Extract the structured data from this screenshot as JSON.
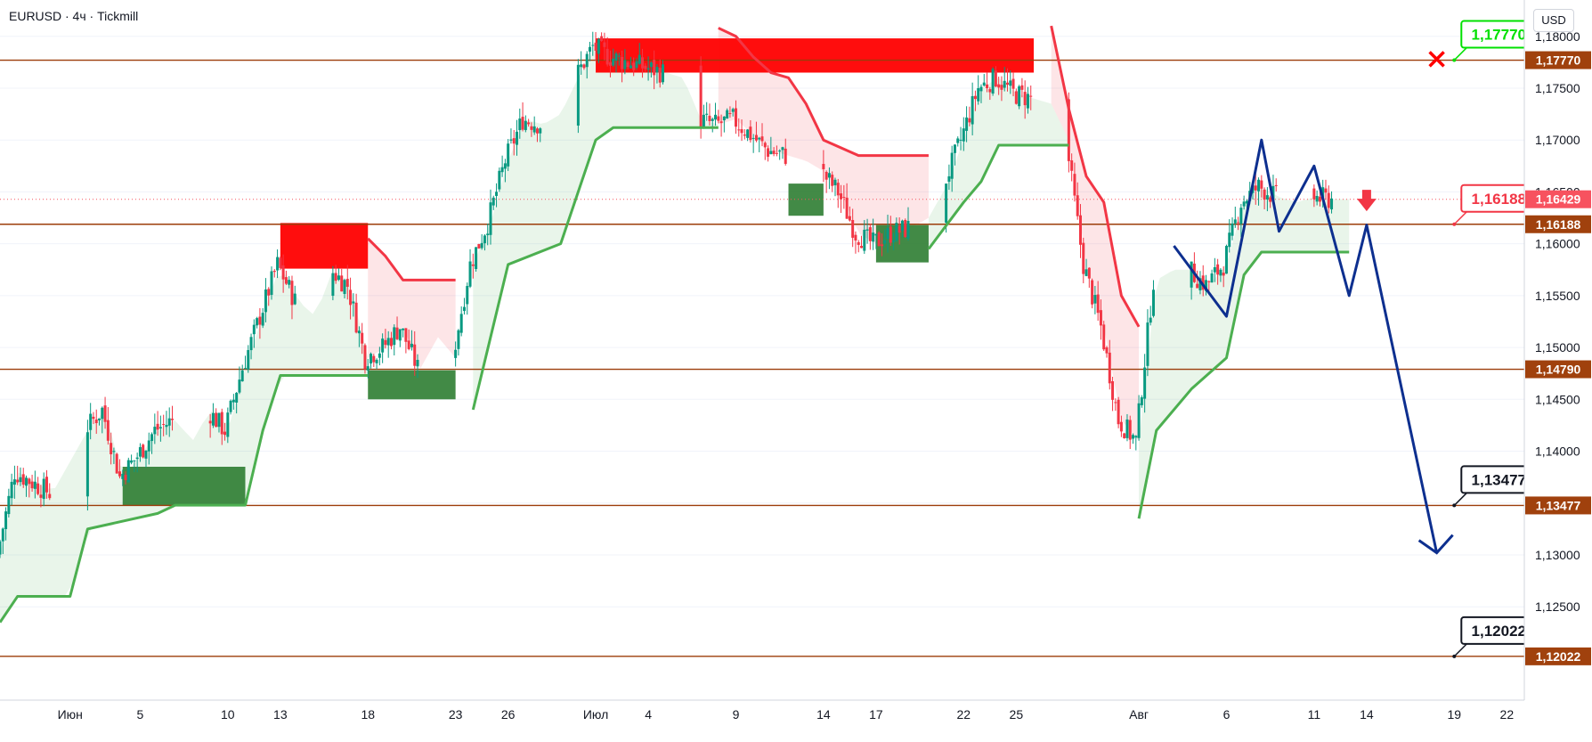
{
  "header": {
    "symbol": "EURUSD · 4ч · Tickmill",
    "currency": "USD"
  },
  "colors": {
    "bull": "#089981",
    "bear": "#f23645",
    "level": "#9c3d0a",
    "level_tag": "#a0410d",
    "supertrend_up": "#4caf50",
    "supertrend_down": "#f23645",
    "fill_up": "rgba(76,175,80,0.12)",
    "fill_down": "rgba(242,54,69,0.13)",
    "supply_zone": "#ff0000",
    "demand_zone": "#2e7d32",
    "projection": "#0d2f8f",
    "callout_green": "#00e000",
    "callout_red": "#f23645",
    "callout_black": "#131722"
  },
  "chart_data": {
    "type": "candlestick",
    "title": "EURUSD · 4ч · Tickmill",
    "y_axis": {
      "min": 1.116,
      "max": 1.1835,
      "ticks": [
        1.125,
        1.13,
        1.135,
        1.14,
        1.145,
        1.15,
        1.155,
        1.16,
        1.165,
        1.17,
        1.175,
        1.18
      ],
      "currency": "USD"
    },
    "x_axis": {
      "start_date": "2025-05-28",
      "end_date": "2025-08-23",
      "tick_labels": [
        {
          "date": "2025-06-01",
          "label": "Июн"
        },
        {
          "date": "2025-06-05",
          "label": "5"
        },
        {
          "date": "2025-06-10",
          "label": "10"
        },
        {
          "date": "2025-06-13",
          "label": "13"
        },
        {
          "date": "2025-06-18",
          "label": "18"
        },
        {
          "date": "2025-06-23",
          "label": "23"
        },
        {
          "date": "2025-06-26",
          "label": "26"
        },
        {
          "date": "2025-07-01",
          "label": "Июл"
        },
        {
          "date": "2025-07-04",
          "label": "4"
        },
        {
          "date": "2025-07-09",
          "label": "9"
        },
        {
          "date": "2025-07-14",
          "label": "14"
        },
        {
          "date": "2025-07-17",
          "label": "17"
        },
        {
          "date": "2025-07-22",
          "label": "22"
        },
        {
          "date": "2025-07-25",
          "label": "25"
        },
        {
          "date": "2025-08-01",
          "label": "Авг"
        },
        {
          "date": "2025-08-06",
          "label": "6"
        },
        {
          "date": "2025-08-11",
          "label": "11"
        },
        {
          "date": "2025-08-14",
          "label": "14"
        },
        {
          "date": "2025-08-19",
          "label": "19"
        },
        {
          "date": "2025-08-22",
          "label": "22"
        }
      ]
    },
    "price_path": [
      [
        "2025-05-28",
        1.13
      ],
      [
        "2025-05-29",
        1.138
      ],
      [
        "2025-05-31",
        1.136
      ],
      [
        "2025-06-02",
        1.142
      ],
      [
        "2025-06-03",
        1.144
      ],
      [
        "2025-06-04",
        1.1375
      ],
      [
        "2025-06-05",
        1.1395
      ],
      [
        "2025-06-06",
        1.142
      ],
      [
        "2025-06-07",
        1.143
      ],
      [
        "2025-06-08",
        1.141
      ],
      [
        "2025-06-09",
        1.144
      ],
      [
        "2025-06-10",
        1.142
      ],
      [
        "2025-06-11",
        1.148
      ],
      [
        "2025-06-12",
        1.153
      ],
      [
        "2025-06-13",
        1.158
      ],
      [
        "2025-06-14",
        1.1545
      ],
      [
        "2025-06-15",
        1.153
      ],
      [
        "2025-06-16",
        1.1575
      ],
      [
        "2025-06-17",
        1.156
      ],
      [
        "2025-06-18",
        1.149
      ],
      [
        "2025-06-19",
        1.15
      ],
      [
        "2025-06-20",
        1.152
      ],
      [
        "2025-06-21",
        1.148
      ],
      [
        "2025-06-22",
        1.151
      ],
      [
        "2025-06-23",
        1.149
      ],
      [
        "2025-06-24",
        1.158
      ],
      [
        "2025-06-25",
        1.162
      ],
      [
        "2025-06-26",
        1.168
      ],
      [
        "2025-06-27",
        1.172
      ],
      [
        "2025-06-28",
        1.1715
      ],
      [
        "2025-06-29",
        1.1725
      ],
      [
        "2025-06-30",
        1.176
      ],
      [
        "2025-07-01",
        1.179
      ],
      [
        "2025-07-02",
        1.178
      ],
      [
        "2025-07-03",
        1.1775
      ],
      [
        "2025-07-04",
        1.177
      ],
      [
        "2025-07-05",
        1.1765
      ],
      [
        "2025-07-06",
        1.176
      ],
      [
        "2025-07-07",
        1.172
      ],
      [
        "2025-07-08",
        1.1715
      ],
      [
        "2025-07-09",
        1.172
      ],
      [
        "2025-07-10",
        1.1705
      ],
      [
        "2025-07-11",
        1.169
      ],
      [
        "2025-07-12",
        1.1685
      ],
      [
        "2025-07-13",
        1.168
      ],
      [
        "2025-07-14",
        1.167
      ],
      [
        "2025-07-15",
        1.165
      ],
      [
        "2025-07-16",
        1.161
      ],
      [
        "2025-07-17",
        1.16
      ],
      [
        "2025-07-18",
        1.161
      ],
      [
        "2025-07-19",
        1.1615
      ],
      [
        "2025-07-20",
        1.1625
      ],
      [
        "2025-07-21",
        1.1655
      ],
      [
        "2025-07-22",
        1.17
      ],
      [
        "2025-07-23",
        1.175
      ],
      [
        "2025-07-24",
        1.176
      ],
      [
        "2025-07-25",
        1.1745
      ],
      [
        "2025-07-26",
        1.174
      ],
      [
        "2025-07-27",
        1.1735
      ],
      [
        "2025-07-28",
        1.17
      ],
      [
        "2025-07-29",
        1.158
      ],
      [
        "2025-07-30",
        1.152
      ],
      [
        "2025-07-31",
        1.143
      ],
      [
        "2025-08-01",
        1.141
      ],
      [
        "2025-08-02",
        1.1565
      ],
      [
        "2025-08-03",
        1.1575
      ],
      [
        "2025-08-04",
        1.1575
      ],
      [
        "2025-08-05",
        1.156
      ],
      [
        "2025-08-06",
        1.158
      ],
      [
        "2025-08-07",
        1.164
      ],
      [
        "2025-08-08",
        1.1655
      ],
      [
        "2025-08-09",
        1.1645
      ],
      [
        "2025-08-10",
        1.164
      ],
      [
        "2025-08-11",
        1.1645
      ],
      [
        "2025-08-12",
        1.1643
      ]
    ],
    "horizontal_levels": [
      1.1777,
      1.16188,
      1.1479,
      1.13477,
      1.12022
    ],
    "price_tags": [
      {
        "value": 1.1777,
        "label": "1,17770"
      },
      {
        "value": 1.16429,
        "label": "1,16429",
        "current": true
      },
      {
        "value": 1.16188,
        "label": "1,16188"
      },
      {
        "value": 1.1479,
        "label": "1,14790"
      },
      {
        "value": 1.13477,
        "label": "1,13477"
      },
      {
        "value": 1.12022,
        "label": "1,12022"
      }
    ],
    "y_tick_labels": [
      "1,12500",
      "1,13000",
      "1,13500",
      "1,14000",
      "1,14500",
      "1,15000",
      "1,15500",
      "1,16000",
      "1,16500",
      "1,17000",
      "1,17500",
      "1,18000"
    ],
    "zones": [
      {
        "kind": "supply",
        "x0": "2025-06-13",
        "x1": "2025-06-18",
        "y0": 1.1576,
        "y1": 1.162
      },
      {
        "kind": "supply",
        "x0": "2025-07-01",
        "x1": "2025-07-26",
        "y0": 1.1765,
        "y1": 1.1798
      },
      {
        "kind": "demand",
        "x0": "2025-06-04",
        "x1": "2025-06-11",
        "y0": 1.1348,
        "y1": 1.1385
      },
      {
        "kind": "demand",
        "x0": "2025-06-18",
        "x1": "2025-06-23",
        "y0": 1.145,
        "y1": 1.1478
      },
      {
        "kind": "demand",
        "x0": "2025-07-12",
        "x1": "2025-07-14",
        "y0": 1.1627,
        "y1": 1.1658
      },
      {
        "kind": "demand",
        "x0": "2025-07-17",
        "x1": "2025-07-20",
        "y0": 1.1582,
        "y1": 1.1618
      }
    ],
    "supertrend_up_segments": [
      [
        [
          "2025-05-28",
          1.1235
        ],
        [
          "2025-05-29",
          1.126
        ],
        [
          "2025-06-01",
          1.126
        ],
        [
          "2025-06-02",
          1.1325
        ],
        [
          "2025-06-06",
          1.134
        ],
        [
          "2025-06-07",
          1.1348
        ],
        [
          "2025-06-11",
          1.1348
        ],
        [
          "2025-06-12",
          1.142
        ],
        [
          "2025-06-13",
          1.1473
        ],
        [
          "2025-06-18",
          1.1473
        ]
      ],
      [
        [
          "2025-06-24",
          1.144
        ],
        [
          "2025-06-26",
          1.158
        ],
        [
          "2025-06-29",
          1.16
        ],
        [
          "2025-07-01",
          1.17
        ],
        [
          "2025-07-02",
          1.1712
        ],
        [
          "2025-07-08",
          1.1712
        ]
      ],
      [
        [
          "2025-07-20",
          1.1595
        ],
        [
          "2025-07-22",
          1.164
        ],
        [
          "2025-07-23",
          1.166
        ],
        [
          "2025-07-24",
          1.1695
        ],
        [
          "2025-07-28",
          1.1695
        ]
      ],
      [
        [
          "2025-08-01",
          1.1335
        ],
        [
          "2025-08-02",
          1.142
        ],
        [
          "2025-08-04",
          1.146
        ],
        [
          "2025-08-06",
          1.149
        ],
        [
          "2025-08-07",
          1.157
        ],
        [
          "2025-08-08",
          1.1592
        ],
        [
          "2025-08-13",
          1.1592
        ]
      ]
    ],
    "supertrend_down_segments": [
      [
        [
          "2025-06-18",
          1.1605
        ],
        [
          "2025-06-19",
          1.1588
        ],
        [
          "2025-06-20",
          1.1565
        ],
        [
          "2025-06-23",
          1.1565
        ]
      ],
      [
        [
          "2025-07-08",
          1.1808
        ],
        [
          "2025-07-09",
          1.18
        ],
        [
          "2025-07-10",
          1.178
        ],
        [
          "2025-07-11",
          1.1765
        ],
        [
          "2025-07-12",
          1.176
        ],
        [
          "2025-07-13",
          1.1735
        ],
        [
          "2025-07-14",
          1.17
        ],
        [
          "2025-07-16",
          1.1685
        ],
        [
          "2025-07-20",
          1.1685
        ]
      ],
      [
        [
          "2025-07-27",
          1.181
        ],
        [
          "2025-07-28",
          1.173
        ],
        [
          "2025-07-29",
          1.1665
        ],
        [
          "2025-07-30",
          1.164
        ],
        [
          "2025-07-31",
          1.155
        ],
        [
          "2025-08-01",
          1.152
        ]
      ]
    ],
    "projection_path": [
      [
        "2025-08-03",
        1.1598
      ],
      [
        "2025-08-06",
        1.153
      ],
      [
        "2025-08-08",
        1.17
      ],
      [
        "2025-08-09",
        1.1612
      ],
      [
        "2025-08-11",
        1.1675
      ],
      [
        "2025-08-13",
        1.155
      ],
      [
        "2025-08-14",
        1.1618
      ],
      [
        "2025-08-18",
        1.1302
      ]
    ],
    "annotations": [
      {
        "type": "callout",
        "date": "2025-08-19",
        "value": 1.1777,
        "label": "1,17770",
        "style": "green"
      },
      {
        "type": "callout",
        "date": "2025-08-19",
        "value": 1.16188,
        "label": "1,16188",
        "style": "red"
      },
      {
        "type": "callout",
        "date": "2025-08-19",
        "value": 1.13477,
        "label": "1,13477",
        "style": "black"
      },
      {
        "type": "callout",
        "date": "2025-08-19",
        "value": 1.12022,
        "label": "1,12022",
        "style": "black"
      },
      {
        "type": "cross",
        "date": "2025-08-18",
        "value": 1.1778
      },
      {
        "type": "down-arrow",
        "date": "2025-08-14",
        "value": 1.164
      }
    ]
  }
}
